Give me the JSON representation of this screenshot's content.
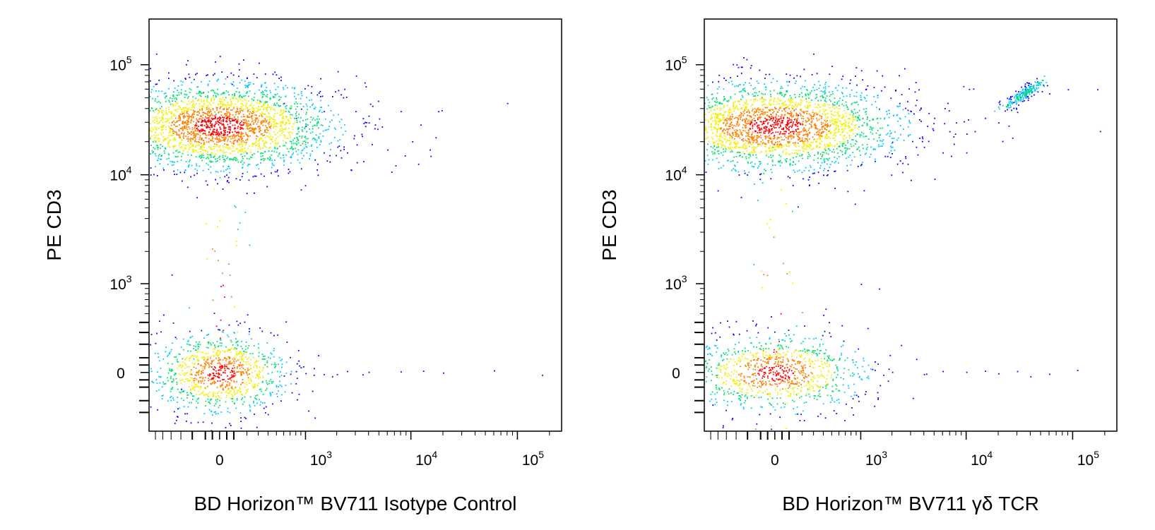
{
  "chart_data": [
    {
      "type": "scatter",
      "subtype": "flow-cytometry-density-dot-plot",
      "title": "",
      "xlabel": "BD Horizon™ BV711 Isotype Control",
      "ylabel": "PE CD3",
      "x_scale": "biexponential",
      "y_scale": "biexponential",
      "x_ticks": [
        {
          "value": 0,
          "base": "0",
          "exp": ""
        },
        {
          "value": 1000,
          "base": "10",
          "exp": "3"
        },
        {
          "value": 10000,
          "base": "10",
          "exp": "4"
        },
        {
          "value": 100000,
          "base": "10",
          "exp": "5"
        }
      ],
      "y_ticks": [
        {
          "value": 0,
          "base": "0",
          "exp": ""
        },
        {
          "value": 1000,
          "base": "10",
          "exp": "3"
        },
        {
          "value": 10000,
          "base": "10",
          "exp": "4"
        },
        {
          "value": 100000,
          "base": "10",
          "exp": "5"
        }
      ],
      "grid": false,
      "legend": "none",
      "color_scale": [
        "#0000ff",
        "#00c8ff",
        "#00e070",
        "#f0f000",
        "#ff8000",
        "#ff0000"
      ],
      "populations": [
        {
          "x": 0,
          "y": 28000,
          "count": 2600,
          "spread_x": 0.55,
          "spread_y": 0.2
        },
        {
          "x": 0,
          "y": 0,
          "count": 1000,
          "spread_x": 0.32,
          "spread_y": 0.18
        },
        {
          "x": 0,
          "y": 400,
          "count": 60,
          "spread_x": 0.15,
          "spread_y": 1.0
        }
      ],
      "sparse_points": [
        [
          600,
          45000
        ],
        [
          900,
          40000
        ],
        [
          1500,
          38000
        ],
        [
          3000,
          38000
        ],
        [
          4000,
          30000
        ],
        [
          8000,
          38000
        ],
        [
          18000,
          38000
        ],
        [
          80000,
          45000
        ],
        [
          6000,
          17000
        ],
        [
          15000,
          17000
        ],
        [
          17000,
          22000
        ],
        [
          1500,
          16000
        ],
        [
          2500,
          16000
        ],
        [
          1000,
          28000
        ],
        [
          800,
          33000
        ],
        [
          1500,
          -10
        ],
        [
          2500,
          10
        ],
        [
          4000,
          5
        ],
        [
          8000,
          8
        ],
        [
          13000,
          12
        ],
        [
          20000,
          0
        ],
        [
          60000,
          15
        ],
        [
          170000,
          -15
        ],
        [
          1200,
          -15
        ],
        [
          2000,
          -10
        ],
        [
          700,
          -8
        ],
        [
          3500,
          -12
        ],
        [
          600,
          -20
        ]
      ]
    },
    {
      "type": "scatter",
      "subtype": "flow-cytometry-density-dot-plot",
      "title": "",
      "xlabel": "BD Horizon™ BV711 γδ TCR",
      "ylabel": "PE CD3",
      "x_scale": "biexponential",
      "y_scale": "biexponential",
      "x_ticks": [
        {
          "value": 0,
          "base": "0",
          "exp": ""
        },
        {
          "value": 1000,
          "base": "10",
          "exp": "3"
        },
        {
          "value": 10000,
          "base": "10",
          "exp": "4"
        },
        {
          "value": 100000,
          "base": "10",
          "exp": "5"
        }
      ],
      "y_ticks": [
        {
          "value": 0,
          "base": "0",
          "exp": ""
        },
        {
          "value": 1000,
          "base": "10",
          "exp": "3"
        },
        {
          "value": 10000,
          "base": "10",
          "exp": "4"
        },
        {
          "value": 100000,
          "base": "10",
          "exp": "5"
        }
      ],
      "grid": false,
      "legend": "none",
      "color_scale": [
        "#0000ff",
        "#00c8ff",
        "#00e070",
        "#f0f000",
        "#ff8000",
        "#ff0000"
      ],
      "populations": [
        {
          "x": 0,
          "y": 28000,
          "count": 2600,
          "spread_x": 0.6,
          "spread_y": 0.2
        },
        {
          "x": 0,
          "y": 0,
          "count": 1000,
          "spread_x": 0.42,
          "spread_y": 0.17
        },
        {
          "x": 0,
          "y": 400,
          "count": 60,
          "spread_x": 0.15,
          "spread_y": 1.0
        },
        {
          "x": 35000,
          "y": 55000,
          "count": 220,
          "spread_x": 0.1,
          "spread_y": 0.06,
          "diagonal": true
        }
      ],
      "sparse_points": [
        [
          1500,
          40000
        ],
        [
          3000,
          38000
        ],
        [
          5000,
          33000
        ],
        [
          8000,
          30000
        ],
        [
          12000,
          25000
        ],
        [
          15000,
          33000
        ],
        [
          20000,
          30000
        ],
        [
          25000,
          28000
        ],
        [
          4000,
          18000
        ],
        [
          6000,
          16000
        ],
        [
          10000,
          16000
        ],
        [
          2000,
          20000
        ],
        [
          3000,
          9000
        ],
        [
          60000,
          55000
        ],
        [
          90000,
          60000
        ],
        [
          170000,
          60000
        ],
        [
          180000,
          25000
        ],
        [
          2000,
          5
        ],
        [
          4000,
          -10
        ],
        [
          6000,
          10
        ],
        [
          10000,
          5
        ],
        [
          15000,
          12
        ],
        [
          20000,
          -5
        ],
        [
          30000,
          10
        ],
        [
          40000,
          -25
        ],
        [
          60000,
          -8
        ],
        [
          110000,
          18
        ],
        [
          1500,
          900
        ],
        [
          1000,
          1000
        ]
      ]
    }
  ]
}
